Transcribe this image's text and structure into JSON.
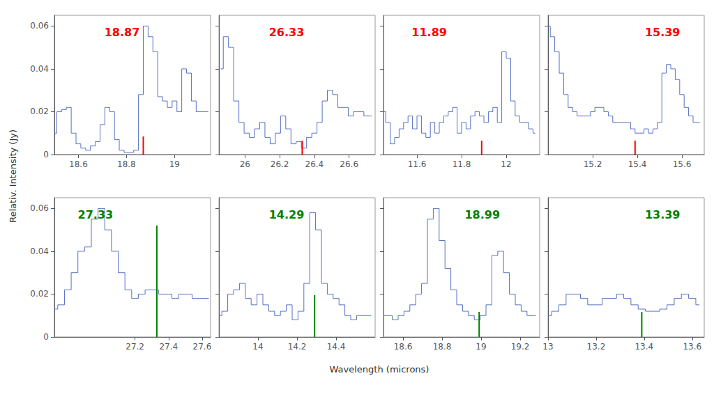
{
  "chart_data": {
    "type": "step",
    "xlabel": "Wavelength (microns)",
    "ylabel": "Relativ. Intensity (Jy)",
    "ylim": [
      0,
      0.065
    ],
    "yticks": [
      0,
      0.02,
      0.04,
      0.06
    ],
    "grid": false,
    "panels": [
      {
        "annotation": "18.87",
        "annotation_color": "red",
        "xlim": [
          18.5,
          19.15
        ],
        "xticks": [
          18.6,
          18.8,
          19
        ],
        "x": [
          18.5,
          18.52,
          18.54,
          18.56,
          18.58,
          18.6,
          18.62,
          18.64,
          18.66,
          18.68,
          18.7,
          18.72,
          18.74,
          18.76,
          18.78,
          18.8,
          18.82,
          18.84,
          18.86,
          18.88,
          18.9,
          18.92,
          18.94,
          18.96,
          18.98,
          19.0,
          19.02,
          19.04,
          19.06,
          19.08,
          19.1,
          19.12,
          19.14
        ],
        "values": [
          0.01,
          0.02,
          0.021,
          0.022,
          0.01,
          0.005,
          0.003,
          0.002,
          0.004,
          0.006,
          0.014,
          0.022,
          0.02,
          0.007,
          0.002,
          0.001,
          0.001,
          0.002,
          0.028,
          0.06,
          0.055,
          0.048,
          0.027,
          0.025,
          0.022,
          0.025,
          0.02,
          0.04,
          0.038,
          0.025,
          0.02,
          0.02,
          0.02
        ],
        "marker_line": {
          "x": 18.87,
          "y": [
            0,
            0.00845
          ],
          "color": "red"
        }
      },
      {
        "annotation": "26.33",
        "annotation_color": "red",
        "tick_labels": "x",
        "xlim": [
          25.85,
          26.75
        ],
        "xticks": [
          26,
          26.2,
          26.4,
          26.6
        ],
        "x": [
          25.86,
          25.89,
          25.92,
          25.95,
          25.98,
          26.01,
          26.04,
          26.07,
          26.1,
          26.13,
          26.16,
          26.19,
          26.22,
          26.25,
          26.28,
          26.31,
          26.34,
          26.37,
          26.4,
          26.43,
          26.46,
          26.49,
          26.52,
          26.55,
          26.58,
          26.61,
          26.64,
          26.67,
          26.7,
          26.73
        ],
        "values": [
          0.04,
          0.055,
          0.05,
          0.025,
          0.015,
          0.01,
          0.008,
          0.012,
          0.015,
          0.008,
          0.005,
          0.01,
          0.018,
          0.012,
          0.005,
          0.006,
          0.003,
          0.008,
          0.01,
          0.015,
          0.025,
          0.03,
          0.028,
          0.022,
          0.022,
          0.018,
          0.02,
          0.02,
          0.018,
          0.018
        ],
        "marker_line": {
          "x": 26.33,
          "y": [
            0,
            0.0065
          ],
          "color": "red"
        }
      },
      {
        "annotation": "11.89",
        "annotation_color": "red",
        "tick_labels": "x",
        "xlim": [
          11.45,
          12.15
        ],
        "xticks": [
          11.6,
          11.8,
          12
        ],
        "x": [
          11.45,
          11.47,
          11.49,
          11.51,
          11.53,
          11.55,
          11.57,
          11.59,
          11.61,
          11.63,
          11.65,
          11.67,
          11.69,
          11.71,
          11.73,
          11.75,
          11.77,
          11.79,
          11.81,
          11.83,
          11.85,
          11.87,
          11.89,
          11.91,
          11.93,
          11.95,
          11.97,
          11.99,
          12.01,
          12.03,
          12.05,
          12.07,
          12.09,
          12.11,
          12.13
        ],
        "values": [
          0.02,
          0.015,
          0.005,
          0.008,
          0.012,
          0.015,
          0.018,
          0.012,
          0.018,
          0.01,
          0.008,
          0.015,
          0.01,
          0.015,
          0.018,
          0.02,
          0.022,
          0.01,
          0.015,
          0.012,
          0.018,
          0.02,
          0.018,
          0.015,
          0.02,
          0.022,
          0.015,
          0.048,
          0.045,
          0.025,
          0.018,
          0.015,
          0.015,
          0.012,
          0.01
        ],
        "marker_line": {
          "x": 11.89,
          "y": [
            0,
            0.0065
          ],
          "color": "red"
        }
      },
      {
        "annotation": "15.39",
        "annotation_color": "red",
        "tick_labels": "x",
        "xlim": [
          15.0,
          15.7
        ],
        "xticks": [
          15.2,
          15.4,
          15.6
        ],
        "x": [
          15.0,
          15.02,
          15.04,
          15.06,
          15.08,
          15.1,
          15.12,
          15.14,
          15.16,
          15.18,
          15.2,
          15.22,
          15.24,
          15.26,
          15.28,
          15.3,
          15.32,
          15.34,
          15.36,
          15.38,
          15.4,
          15.42,
          15.44,
          15.46,
          15.48,
          15.5,
          15.52,
          15.54,
          15.56,
          15.58,
          15.6,
          15.62,
          15.64,
          15.66,
          15.68
        ],
        "values": [
          0.06,
          0.055,
          0.048,
          0.038,
          0.028,
          0.022,
          0.02,
          0.018,
          0.018,
          0.018,
          0.02,
          0.022,
          0.022,
          0.02,
          0.018,
          0.015,
          0.015,
          0.015,
          0.015,
          0.012,
          0.01,
          0.01,
          0.012,
          0.01,
          0.012,
          0.015,
          0.038,
          0.042,
          0.04,
          0.035,
          0.028,
          0.022,
          0.018,
          0.015,
          0.015
        ],
        "marker_line": {
          "x": 15.39,
          "y": [
            0,
            0.0065
          ],
          "color": "red"
        }
      },
      {
        "annotation": "27.33",
        "annotation_color": "green",
        "xlim": [
          26.72,
          27.65
        ],
        "xticks": [
          27.2,
          27.4,
          27.6
        ],
        "x": [
          26.72,
          26.76,
          26.8,
          26.84,
          26.88,
          26.92,
          26.96,
          27.0,
          27.04,
          27.08,
          27.12,
          27.16,
          27.2,
          27.24,
          27.28,
          27.32,
          27.36,
          27.4,
          27.44,
          27.48,
          27.52,
          27.56,
          27.6,
          27.64
        ],
        "values": [
          0.013,
          0.015,
          0.022,
          0.03,
          0.04,
          0.042,
          0.055,
          0.06,
          0.05,
          0.04,
          0.03,
          0.022,
          0.018,
          0.02,
          0.022,
          0.022,
          0.02,
          0.02,
          0.018,
          0.02,
          0.02,
          0.018,
          0.018,
          0.018
        ],
        "marker_line": {
          "x": 27.33,
          "y": [
            0,
            0.052
          ],
          "color": "green"
        }
      },
      {
        "annotation": "14.29",
        "annotation_color": "green",
        "tick_labels": "x",
        "xlim": [
          13.8,
          14.6
        ],
        "xticks": [
          14,
          14.2,
          14.4
        ],
        "x": [
          13.8,
          13.83,
          13.86,
          13.89,
          13.92,
          13.95,
          13.98,
          14.01,
          14.04,
          14.07,
          14.1,
          14.13,
          14.16,
          14.19,
          14.22,
          14.25,
          14.28,
          14.31,
          14.34,
          14.37,
          14.4,
          14.43,
          14.46,
          14.49,
          14.52,
          14.55,
          14.58
        ],
        "values": [
          0.01,
          0.012,
          0.02,
          0.022,
          0.025,
          0.018,
          0.015,
          0.02,
          0.015,
          0.012,
          0.01,
          0.012,
          0.015,
          0.008,
          0.012,
          0.025,
          0.058,
          0.05,
          0.025,
          0.02,
          0.018,
          0.015,
          0.01,
          0.008,
          0.01,
          0.01,
          0.01
        ],
        "marker_line": {
          "x": 14.29,
          "y": [
            0,
            0.0195
          ],
          "color": "green"
        }
      },
      {
        "annotation": "18.99",
        "annotation_color": "green",
        "tick_labels": "x",
        "xlim": [
          18.5,
          19.3
        ],
        "xticks": [
          18.6,
          18.8,
          19,
          19.2
        ],
        "x": [
          18.5,
          18.53,
          18.56,
          18.59,
          18.62,
          18.65,
          18.68,
          18.71,
          18.74,
          18.77,
          18.8,
          18.83,
          18.86,
          18.89,
          18.92,
          18.95,
          18.98,
          19.01,
          19.04,
          19.07,
          19.1,
          19.13,
          19.16,
          19.19,
          19.22,
          19.25,
          19.28
        ],
        "values": [
          0.01,
          0.01,
          0.008,
          0.01,
          0.012,
          0.015,
          0.02,
          0.025,
          0.055,
          0.06,
          0.045,
          0.032,
          0.022,
          0.015,
          0.012,
          0.01,
          0.008,
          0.01,
          0.015,
          0.038,
          0.04,
          0.03,
          0.02,
          0.015,
          0.012,
          0.01,
          0.01
        ],
        "marker_line": {
          "x": 18.99,
          "y": [
            0,
            0.0117
          ],
          "color": "green"
        }
      },
      {
        "annotation": "13.39",
        "annotation_color": "green",
        "tick_labels": "x",
        "xlim": [
          13.0,
          13.65
        ],
        "xticks": [
          13,
          13.2,
          13.4,
          13.6
        ],
        "x": [
          13.0,
          13.03,
          13.06,
          13.09,
          13.12,
          13.15,
          13.18,
          13.21,
          13.24,
          13.27,
          13.3,
          13.33,
          13.36,
          13.39,
          13.42,
          13.45,
          13.48,
          13.51,
          13.54,
          13.57,
          13.6,
          13.63
        ],
        "values": [
          0.01,
          0.012,
          0.015,
          0.02,
          0.02,
          0.018,
          0.015,
          0.015,
          0.018,
          0.018,
          0.02,
          0.018,
          0.015,
          0.013,
          0.012,
          0.012,
          0.013,
          0.015,
          0.018,
          0.02,
          0.018,
          0.015
        ],
        "marker_line": {
          "x": 13.39,
          "y": [
            0,
            0.0117
          ],
          "color": "green"
        }
      }
    ]
  }
}
